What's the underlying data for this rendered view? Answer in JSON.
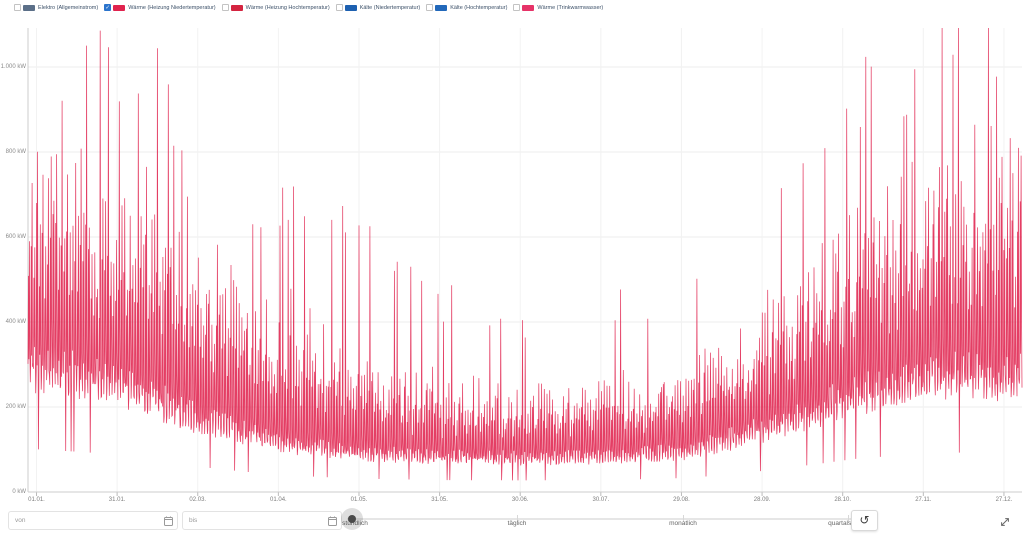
{
  "legend": {
    "items": [
      {
        "label": "Elektro (Allgemeinstrom)",
        "color": "#5b6f88",
        "checked": false
      },
      {
        "label": "Wärme (Heizung Niedertemperatur)",
        "color": "#e0234e",
        "checked": true
      },
      {
        "label": "Wärme (Heizung Hochtemperatur)",
        "color": "#d42440",
        "checked": false
      },
      {
        "label": "Kälte (Niedertemperatur)",
        "color": "#1d60b0",
        "checked": false
      },
      {
        "label": "Kälte (Hochtemperatur)",
        "color": "#2268ba",
        "checked": false
      },
      {
        "label": "Wärme (Trinkwarmwasser)",
        "color": "#e63368",
        "checked": false
      }
    ]
  },
  "chart_data": {
    "type": "line",
    "title": "",
    "xlabel": "",
    "ylabel": "kW",
    "grid": true,
    "legend_position": "top",
    "ylim": [
      0,
      1100
    ],
    "y_ticks": [
      "1.000 kW",
      "800 kW",
      "600 kW",
      "400 kW",
      "200 kW",
      "0 kW"
    ],
    "y_tick_values": [
      1000,
      800,
      600,
      400,
      200,
      0
    ],
    "x_ticks": [
      "01.01.",
      "31.01.",
      "02.03.",
      "01.04.",
      "01.05.",
      "31.05.",
      "30.06.",
      "30.07.",
      "29.08.",
      "28.09.",
      "28.10.",
      "27.11.",
      "27.12."
    ],
    "x_resolution": "hourly, one full year",
    "series": [
      {
        "name": "Wärme (Heizung Niedertemperatur)",
        "color": "#e0234e",
        "monthly_profile": [
          {
            "month": "Jan",
            "base_kw": 290,
            "peak_kw": 860,
            "max_kw": 1100
          },
          {
            "month": "Feb",
            "base_kw": 255,
            "peak_kw": 800,
            "max_kw": 1090
          },
          {
            "month": "Mar",
            "base_kw": 175,
            "peak_kw": 640,
            "max_kw": 950
          },
          {
            "month": "Apr",
            "base_kw": 115,
            "peak_kw": 470,
            "max_kw": 700
          },
          {
            "month": "May",
            "base_kw": 90,
            "peak_kw": 330,
            "max_kw": 680
          },
          {
            "month": "Jun",
            "base_kw": 80,
            "peak_kw": 280,
            "max_kw": 480
          },
          {
            "month": "Jul",
            "base_kw": 78,
            "peak_kw": 260,
            "max_kw": 430
          },
          {
            "month": "Aug",
            "base_kw": 80,
            "peak_kw": 280,
            "max_kw": 460
          },
          {
            "month": "Sep",
            "base_kw": 95,
            "peak_kw": 310,
            "max_kw": 520
          },
          {
            "month": "Oct",
            "base_kw": 150,
            "peak_kw": 460,
            "max_kw": 720
          },
          {
            "month": "Nov",
            "base_kw": 225,
            "peak_kw": 720,
            "max_kw": 1010
          },
          {
            "month": "Dec",
            "base_kw": 265,
            "peak_kw": 840,
            "max_kw": 1120
          }
        ]
      }
    ]
  },
  "controls": {
    "from_placeholder": "von",
    "to_placeholder": "bis",
    "resolution_options": [
      "stündlich",
      "täglich",
      "monatlich",
      "quartalsweise"
    ],
    "selected_resolution": "stündlich",
    "reset_icon": "↺"
  },
  "colors": {
    "series": "#e0234e",
    "grid_line": "#ececec",
    "axis_line": "#cccccc",
    "checked_checkbox": "#2b74cc"
  }
}
